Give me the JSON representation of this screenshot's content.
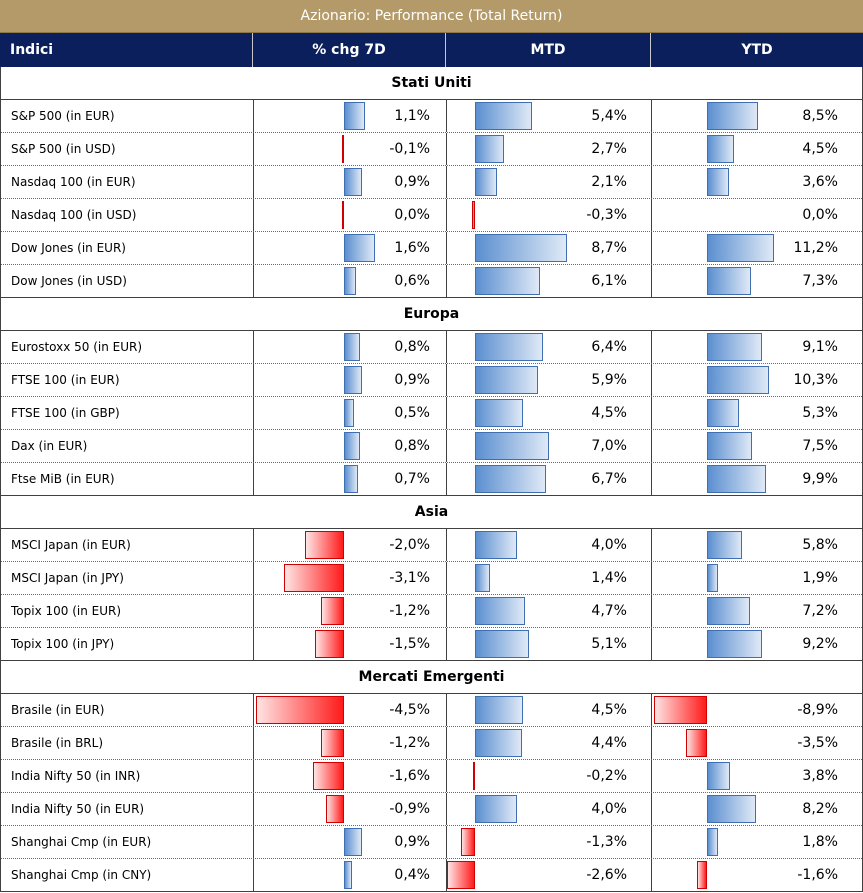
{
  "title": "Azionario: Performance (Total Return)",
  "headers": {
    "index": "Indici",
    "chg7d": "% chg 7D",
    "mtd": "MTD",
    "ytd": "YTD"
  },
  "colors": {
    "title_bg": "#b39a68",
    "header_bg": "#0a1f5c",
    "positive_bar": "#5b8fd0",
    "negative_bar": "#ff1a1a"
  },
  "sections": [
    {
      "name": "Stati Uniti",
      "rows": [
        {
          "name": "S&P 500 (in EUR)",
          "chg7d": 1.1,
          "chg7d_label": "1,1%",
          "mtd": 5.4,
          "mtd_label": "5,4%",
          "ytd": 8.5,
          "ytd_label": "8,5%"
        },
        {
          "name": "S&P 500 (in USD)",
          "chg7d": -0.1,
          "chg7d_label": "-0,1%",
          "mtd": 2.7,
          "mtd_label": "2,7%",
          "ytd": 4.5,
          "ytd_label": "4,5%"
        },
        {
          "name": "Nasdaq 100 (in EUR)",
          "chg7d": 0.9,
          "chg7d_label": "0,9%",
          "mtd": 2.1,
          "mtd_label": "2,1%",
          "ytd": 3.6,
          "ytd_label": "3,6%"
        },
        {
          "name": "Nasdaq 100 (in USD)",
          "chg7d": -0.05,
          "chg7d_label": "0,0%",
          "mtd": -0.3,
          "mtd_label": "-0,3%",
          "ytd": 0.0,
          "ytd_label": "0,0%"
        },
        {
          "name": "Dow Jones (in EUR)",
          "chg7d": 1.6,
          "chg7d_label": "1,6%",
          "mtd": 8.7,
          "mtd_label": "8,7%",
          "ytd": 11.2,
          "ytd_label": "11,2%"
        },
        {
          "name": "Dow Jones (in USD)",
          "chg7d": 0.6,
          "chg7d_label": "0,6%",
          "mtd": 6.1,
          "mtd_label": "6,1%",
          "ytd": 7.3,
          "ytd_label": "7,3%"
        }
      ]
    },
    {
      "name": "Europa",
      "rows": [
        {
          "name": "Eurostoxx 50 (in EUR)",
          "chg7d": 0.8,
          "chg7d_label": "0,8%",
          "mtd": 6.4,
          "mtd_label": "6,4%",
          "ytd": 9.1,
          "ytd_label": "9,1%"
        },
        {
          "name": "FTSE 100 (in EUR)",
          "chg7d": 0.9,
          "chg7d_label": "0,9%",
          "mtd": 5.9,
          "mtd_label": "5,9%",
          "ytd": 10.3,
          "ytd_label": "10,3%"
        },
        {
          "name": "FTSE 100 (in GBP)",
          "chg7d": 0.5,
          "chg7d_label": "0,5%",
          "mtd": 4.5,
          "mtd_label": "4,5%",
          "ytd": 5.3,
          "ytd_label": "5,3%"
        },
        {
          "name": "Dax (in EUR)",
          "chg7d": 0.8,
          "chg7d_label": "0,8%",
          "mtd": 7.0,
          "mtd_label": "7,0%",
          "ytd": 7.5,
          "ytd_label": "7,5%"
        },
        {
          "name": "Ftse MiB (in EUR)",
          "chg7d": 0.7,
          "chg7d_label": "0,7%",
          "mtd": 6.7,
          "mtd_label": "6,7%",
          "ytd": 9.9,
          "ytd_label": "9,9%"
        }
      ]
    },
    {
      "name": "Asia",
      "rows": [
        {
          "name": "MSCI Japan (in EUR)",
          "chg7d": -2.0,
          "chg7d_label": "-2,0%",
          "mtd": 4.0,
          "mtd_label": "4,0%",
          "ytd": 5.8,
          "ytd_label": "5,8%"
        },
        {
          "name": "MSCI Japan (in JPY)",
          "chg7d": -3.1,
          "chg7d_label": "-3,1%",
          "mtd": 1.4,
          "mtd_label": "1,4%",
          "ytd": 1.9,
          "ytd_label": "1,9%"
        },
        {
          "name": "Topix 100 (in EUR)",
          "chg7d": -1.2,
          "chg7d_label": "-1,2%",
          "mtd": 4.7,
          "mtd_label": "4,7%",
          "ytd": 7.2,
          "ytd_label": "7,2%"
        },
        {
          "name": "Topix 100 (in JPY)",
          "chg7d": -1.5,
          "chg7d_label": "-1,5%",
          "mtd": 5.1,
          "mtd_label": "5,1%",
          "ytd": 9.2,
          "ytd_label": "9,2%"
        }
      ]
    },
    {
      "name": "Mercati Emergenti",
      "rows": [
        {
          "name": "Brasile (in EUR)",
          "chg7d": -4.5,
          "chg7d_label": "-4,5%",
          "mtd": 4.5,
          "mtd_label": "4,5%",
          "ytd": -8.9,
          "ytd_label": "-8,9%"
        },
        {
          "name": "Brasile (in BRL)",
          "chg7d": -1.2,
          "chg7d_label": "-1,2%",
          "mtd": 4.4,
          "mtd_label": "4,4%",
          "ytd": -3.5,
          "ytd_label": "-3,5%"
        },
        {
          "name": "India Nifty 50 (in INR)",
          "chg7d": -1.6,
          "chg7d_label": "-1,6%",
          "mtd": -0.2,
          "mtd_label": "-0,2%",
          "ytd": 3.8,
          "ytd_label": "3,8%"
        },
        {
          "name": "India Nifty 50 (in EUR)",
          "chg7d": -0.9,
          "chg7d_label": "-0,9%",
          "mtd": 4.0,
          "mtd_label": "4,0%",
          "ytd": 8.2,
          "ytd_label": "8,2%"
        },
        {
          "name": "Shanghai Cmp (in EUR)",
          "chg7d": 0.9,
          "chg7d_label": "0,9%",
          "mtd": -1.3,
          "mtd_label": "-1,3%",
          "ytd": 1.8,
          "ytd_label": "1,8%"
        },
        {
          "name": "Shanghai Cmp (in CNY)",
          "chg7d": 0.4,
          "chg7d_label": "0,4%",
          "mtd": -2.6,
          "mtd_label": "-2,6%",
          "ytd": -1.6,
          "ytd_label": "-1,6%"
        }
      ]
    }
  ]
}
